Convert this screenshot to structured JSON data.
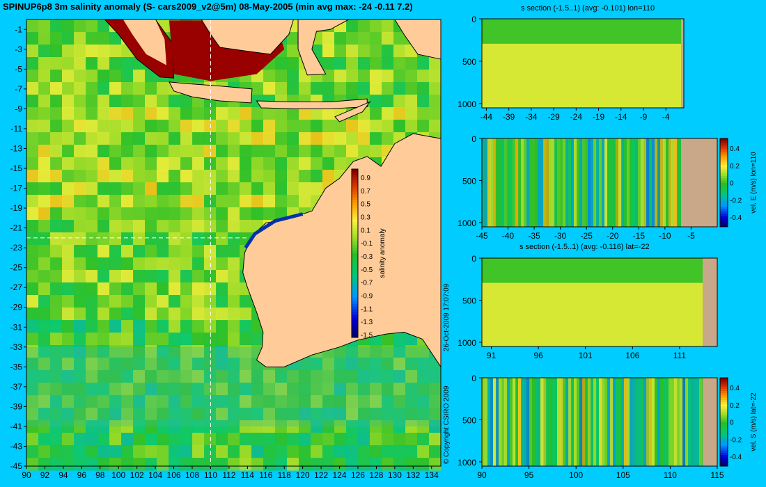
{
  "title": "SPINUP6p8 3m salinity anomaly (S- cars2009_v2@5m) 08-May-2005 (min avg max: -24 -0.11 7.2)",
  "copyright": "© Copyright CSIRO 2009",
  "timestamp": "26-Oct-2009 17:07:09",
  "colors": {
    "background": "#00ccff",
    "land": "#ffcc99",
    "section_land": "#c8a888",
    "coast": "#000000"
  },
  "chart_data": [
    {
      "type": "heatmap",
      "name": "map",
      "xlim": [
        90,
        135
      ],
      "ylim": [
        -45,
        0
      ],
      "xticks": [
        "90",
        "92",
        "94",
        "96",
        "98",
        "100",
        "102",
        "104",
        "106",
        "108",
        "110",
        "112",
        "114",
        "116",
        "118",
        "120",
        "122",
        "124",
        "126",
        "128",
        "130",
        "132",
        "134"
      ],
      "yticks": [
        "-1",
        "-3",
        "-5",
        "-7",
        "-9",
        "-11",
        "-13",
        "-15",
        "-17",
        "-19",
        "-21",
        "-23",
        "-25",
        "-27",
        "-29",
        "-31",
        "-33",
        "-35",
        "-37",
        "-39",
        "-41",
        "-43",
        "-45"
      ],
      "crosshair": {
        "lon": 110,
        "lat": -22
      },
      "colorbar": {
        "label": "salinity anomaly",
        "ticks": [
          "0.9",
          "0.7",
          "0.5",
          "0.3",
          "0.1",
          "-0.1",
          "-0.3",
          "-0.5",
          "-0.7",
          "-0.9",
          "-1.1",
          "-1.3",
          "-1.5"
        ],
        "range": [
          -1.5,
          1.0
        ]
      }
    },
    {
      "type": "heatmap",
      "name": "s-section-lon110",
      "title": "s section (-1.5..1) (avg: -0.101) lon=110",
      "xlim": [
        -45,
        0
      ],
      "ylim": [
        1050,
        0
      ],
      "xticks": [
        "-44",
        "-39",
        "-34",
        "-29",
        "-24",
        "-19",
        "-14",
        "-9",
        "-4"
      ],
      "yticks": [
        "0",
        "500",
        "1000"
      ],
      "land_from": -8
    },
    {
      "type": "heatmap",
      "name": "velE-section-lon110",
      "title": "",
      "xlim": [
        -45,
        0
      ],
      "ylim": [
        1050,
        0
      ],
      "xticks": [
        "-45",
        "-40",
        "-35",
        "-30",
        "-25",
        "-20",
        "-15",
        "-10",
        "-5"
      ],
      "yticks": [
        "0",
        "500",
        "1000"
      ],
      "colorbar": {
        "label": "vel. E (m/s) lon=110",
        "ticks": [
          "0.4",
          "0.2",
          "0",
          "-0.2",
          "-0.4"
        ],
        "range": [
          -0.45,
          0.45
        ]
      }
    },
    {
      "type": "heatmap",
      "name": "s-section-lat-22",
      "title": "s section (-1.5..1) (avg: -0.116) lat=-22",
      "xlim": [
        90,
        115
      ],
      "ylim": [
        1050,
        0
      ],
      "xticks": [
        "91",
        "96",
        "101",
        "106",
        "111"
      ],
      "yticks": [
        "0",
        "500",
        "1000"
      ]
    },
    {
      "type": "heatmap",
      "name": "velS-section-lat-22",
      "title": "",
      "xlim": [
        90,
        115
      ],
      "ylim": [
        1050,
        0
      ],
      "xticks": [
        "90",
        "95",
        "100",
        "105",
        "110",
        "115"
      ],
      "yticks": [
        "0",
        "500",
        "1000"
      ],
      "colorbar": {
        "label": "vel. S (m/s) lat=-22",
        "ticks": [
          "0.4",
          "0.2",
          "0",
          "-0.2",
          "-0.4"
        ],
        "range": [
          -0.45,
          0.45
        ]
      }
    }
  ]
}
